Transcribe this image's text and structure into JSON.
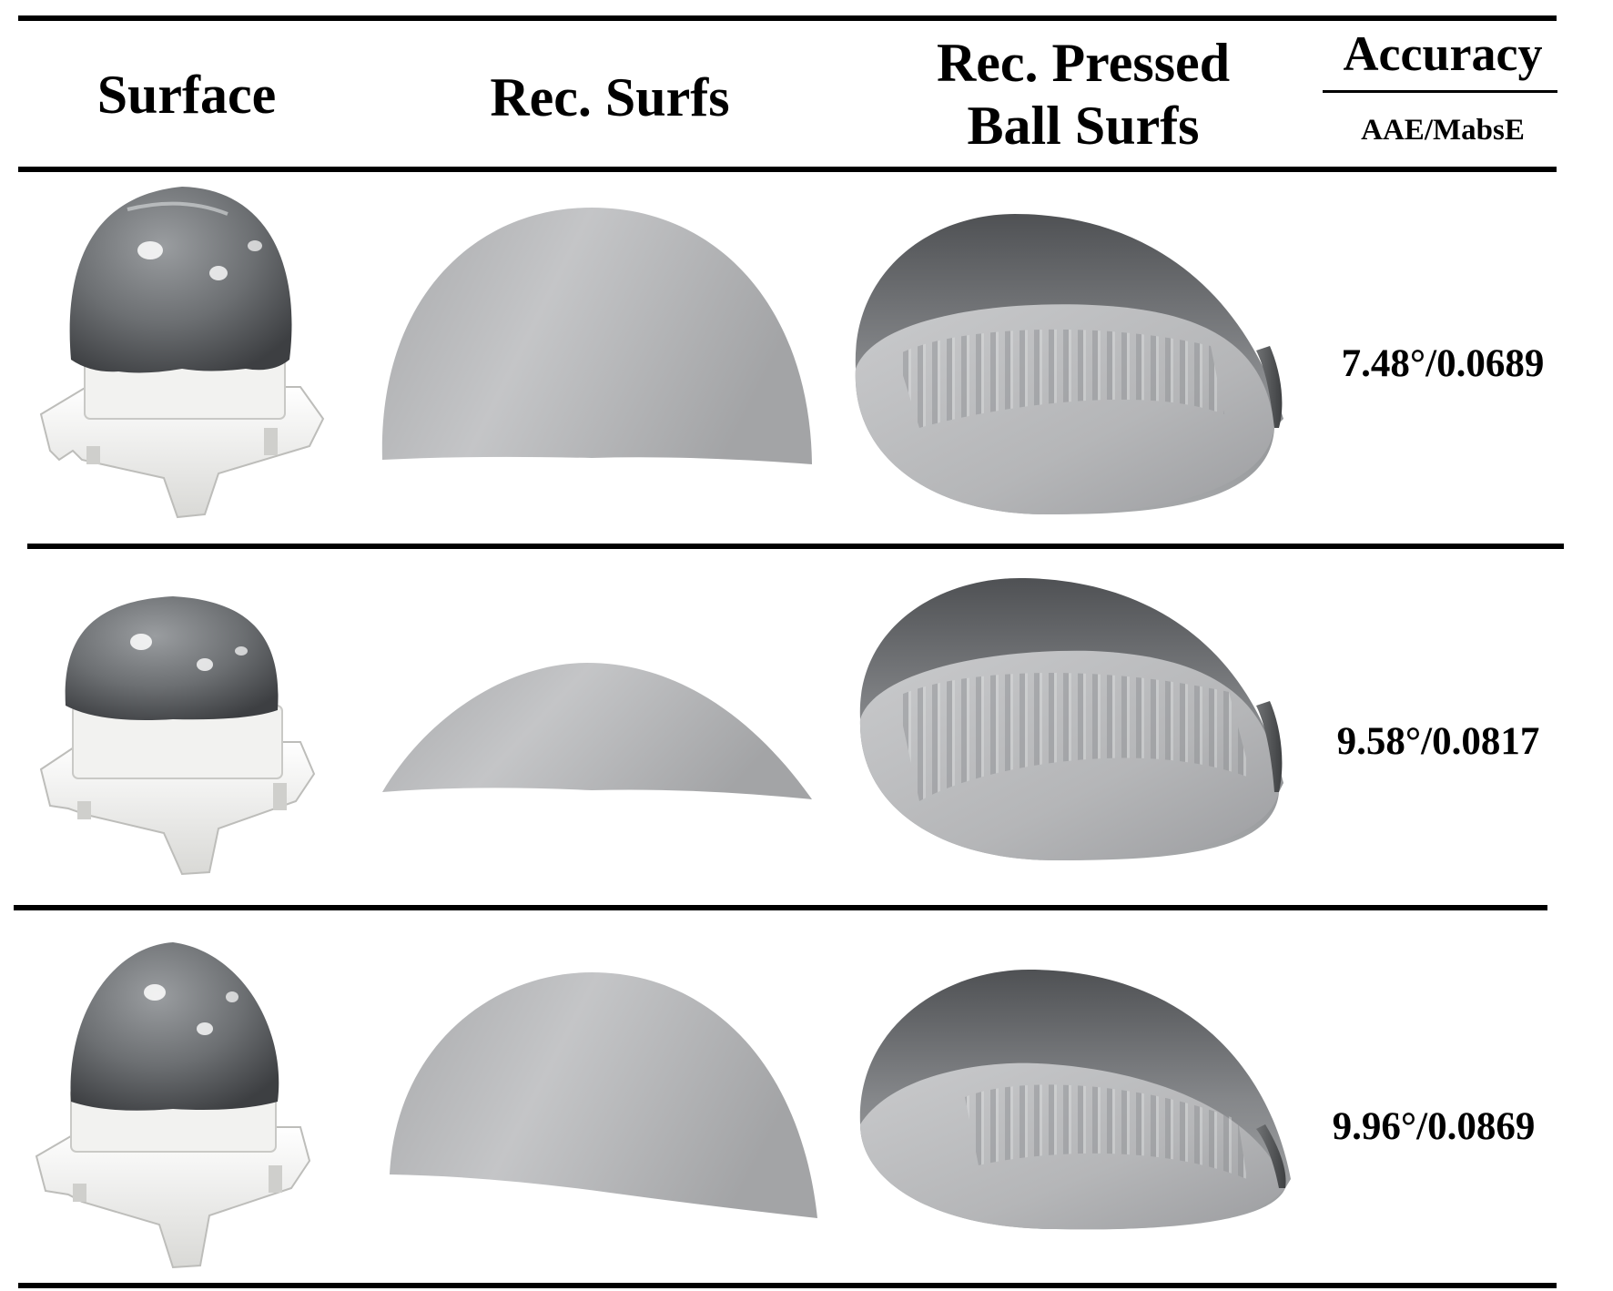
{
  "table": {
    "headers": {
      "surface": "Surface",
      "rec_surfs": "Rec. Surfs",
      "pressed_line1": "Rec. Pressed",
      "pressed_line2": "Ball Surfs",
      "accuracy": "Accuracy",
      "metric": "AAE/MabsE"
    },
    "rows": [
      {
        "accuracy": "7.48°/0.0689"
      },
      {
        "accuracy": "9.58°/0.0817"
      },
      {
        "accuracy": "9.96°/0.0869"
      }
    ]
  },
  "colors": {
    "rule": "#000000",
    "dome_gray": "#b9babc",
    "gel_gray": "#6f7275",
    "base_white": "#f1f1ef"
  }
}
